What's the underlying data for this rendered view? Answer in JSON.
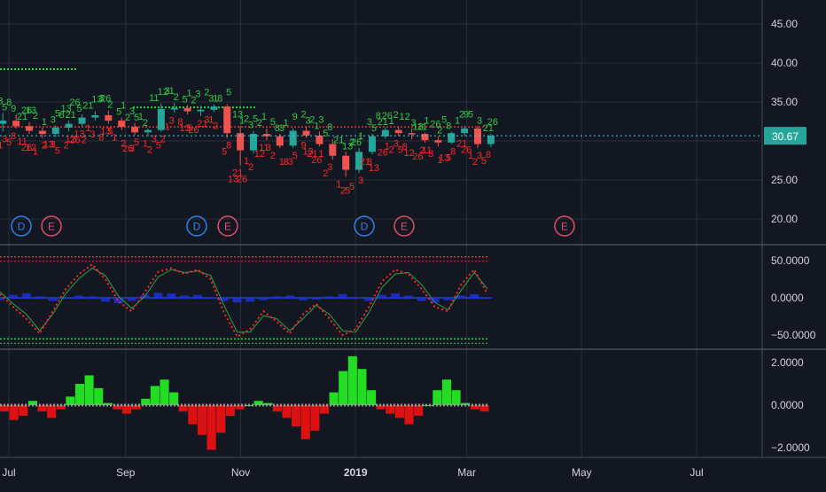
{
  "colors": {
    "background": "#131722",
    "grid": "#2a2e39",
    "axis_text": "#d1d4dc",
    "separator": "#4a4f5c",
    "up": "#26a69a",
    "down": "#ef5350",
    "signal_green": "#2ecc40",
    "signal_red": "#ff2525",
    "price_line": "#4dd0e1",
    "price_badge": "#26a69a",
    "event_dividend": "#2f80ed",
    "event_earnings": "#e04d68",
    "osc_zero": "#2962ff",
    "osc_blue": "#2030d8",
    "hist_green": "#22dd22",
    "hist_red": "#dd1111"
  },
  "x_axis": {
    "labels": [
      {
        "text": "Jul",
        "bold": false
      },
      {
        "text": "Sep",
        "bold": false
      },
      {
        "text": "Nov",
        "bold": false
      },
      {
        "text": "2019",
        "bold": true
      },
      {
        "text": "Mar",
        "bold": false
      },
      {
        "text": "May",
        "bold": false
      },
      {
        "text": "Jul",
        "bold": false
      }
    ]
  },
  "price_panel": {
    "y_ticks": [
      "45.00",
      "40.00",
      "35.00",
      "30.00",
      "25.00",
      "20.00"
    ],
    "last_price": "30.67",
    "resistance_level": 39.2,
    "events": [
      {
        "type": "D",
        "label": "D"
      },
      {
        "type": "E",
        "label": "E"
      },
      {
        "type": "D",
        "label": "D"
      },
      {
        "type": "E",
        "label": "E"
      },
      {
        "type": "D",
        "label": "D"
      },
      {
        "type": "E",
        "label": "E"
      },
      {
        "type": "E",
        "label": "E"
      }
    ]
  },
  "osc_panel": {
    "y_ticks": [
      "50.0000",
      "0.0000",
      "−50.0000"
    ],
    "upper_band": 55,
    "lower_band": -55
  },
  "hist_panel": {
    "y_ticks": [
      "2.0000",
      "0.0000",
      "−2.0000"
    ]
  },
  "green_counts": [
    "2",
    "3",
    "5",
    "8",
    "9",
    "13",
    "21",
    "26",
    "1",
    "2",
    "3",
    "5",
    "8",
    "13",
    "21",
    "26",
    "5",
    "13",
    "21",
    "26",
    "2",
    "3",
    "5",
    "1",
    "2",
    "3",
    "5",
    "1",
    "2",
    "12",
    "11",
    "1",
    "2",
    "3",
    "5",
    "1",
    "2",
    "3",
    "1",
    "2",
    "3",
    "5",
    "8",
    "13",
    "1",
    "2",
    "3",
    "5",
    "2",
    "1",
    "3",
    "5",
    "8",
    "9",
    "1",
    "2",
    "3",
    "2",
    "1",
    "3",
    "5",
    "8",
    "13",
    "21",
    "26",
    "1",
    "2",
    "3",
    "5",
    "8",
    "21",
    "26",
    "1",
    "2",
    "3",
    "12",
    "11",
    "1",
    "13",
    "26",
    "2",
    "5",
    "8",
    "9",
    "1",
    "2",
    "3",
    "5",
    "21",
    "26"
  ],
  "red_counts": [
    "2",
    "1",
    "3",
    "5",
    "8",
    "12",
    "11",
    "26",
    "2",
    "1",
    "3",
    "5",
    "13",
    "2",
    "12",
    "26",
    "13",
    "2",
    "1",
    "3",
    "5",
    "8",
    "13",
    "2",
    "1",
    "3",
    "5",
    "26",
    "1",
    "2",
    "3",
    "5",
    "2",
    "1",
    "3",
    "5",
    "8",
    "13",
    "21",
    "26",
    "1",
    "2",
    "3",
    "5",
    "8",
    "13",
    "21",
    "26",
    "1",
    "2",
    "3",
    "12",
    "11",
    "1",
    "2",
    "3",
    "5",
    "8",
    "9",
    "13",
    "21",
    "26",
    "1",
    "2",
    "3",
    "5",
    "1",
    "2",
    "3",
    "5",
    "8",
    "13",
    "21",
    "26",
    "1",
    "2",
    "3",
    "5",
    "8",
    "12",
    "11",
    "26",
    "2",
    "1",
    "3",
    "5",
    "8",
    "13",
    "21",
    "26",
    "1",
    "2",
    "3",
    "5",
    "8"
  ],
  "chart_data": [
    {
      "type": "candlestick",
      "title": "",
      "x_range": [
        "2018-06-25",
        "2019-07-31"
      ],
      "ylim": [
        16.0,
        47.5
      ],
      "grid": true,
      "series": [
        {
          "ohlc_weekly": [
            [
              "2018-06-25",
              32.2,
              33.6,
              31.2,
              32.6
            ],
            [
              "2018-07-02",
              32.6,
              33.4,
              31.6,
              31.9
            ],
            [
              "2018-07-09",
              31.9,
              32.4,
              30.9,
              31.3
            ],
            [
              "2018-07-16",
              31.3,
              31.7,
              30.4,
              30.9
            ],
            [
              "2018-07-23",
              30.9,
              32.0,
              30.5,
              31.7
            ],
            [
              "2018-07-30",
              31.7,
              32.6,
              31.2,
              32.2
            ],
            [
              "2018-08-06",
              32.2,
              33.4,
              31.9,
              33.0
            ],
            [
              "2018-08-13",
              33.0,
              33.8,
              32.6,
              33.3
            ],
            [
              "2018-08-20",
              33.3,
              33.9,
              32.2,
              32.6
            ],
            [
              "2018-08-27",
              32.6,
              33.0,
              31.4,
              31.8
            ],
            [
              "2018-09-03",
              31.8,
              32.3,
              30.8,
              31.1
            ],
            [
              "2018-09-10",
              31.1,
              31.6,
              30.6,
              31.4
            ],
            [
              "2018-09-17",
              31.4,
              34.8,
              31.2,
              34.1
            ],
            [
              "2018-09-24",
              34.1,
              34.9,
              33.6,
              34.2
            ],
            [
              "2018-10-01",
              34.2,
              34.6,
              33.4,
              33.8
            ],
            [
              "2018-10-08",
              33.8,
              34.5,
              33.2,
              34.0
            ],
            [
              "2018-10-15",
              34.0,
              34.7,
              33.7,
              34.4
            ],
            [
              "2018-10-22",
              34.4,
              34.7,
              30.4,
              31.0
            ],
            [
              "2018-10-29",
              31.0,
              31.9,
              26.9,
              28.8
            ],
            [
              "2018-11-05",
              28.8,
              31.3,
              28.4,
              30.9
            ],
            [
              "2018-11-12",
              30.9,
              31.6,
              30.1,
              30.6
            ],
            [
              "2018-11-19",
              30.6,
              30.9,
              29.1,
              29.4
            ],
            [
              "2018-11-26",
              29.4,
              31.6,
              29.1,
              31.3
            ],
            [
              "2018-12-03",
              31.3,
              31.9,
              30.4,
              30.7
            ],
            [
              "2018-12-10",
              30.7,
              31.2,
              29.3,
              29.6
            ],
            [
              "2018-12-17",
              29.6,
              30.2,
              27.6,
              28.1
            ],
            [
              "2018-12-24",
              28.1,
              28.6,
              25.4,
              26.3
            ],
            [
              "2018-12-31",
              26.3,
              29.1,
              25.9,
              28.6
            ],
            [
              "2019-01-07",
              28.6,
              30.9,
              28.3,
              30.6
            ],
            [
              "2019-01-14",
              30.6,
              31.7,
              30.3,
              31.4
            ],
            [
              "2019-01-21",
              31.4,
              31.8,
              30.6,
              31.0
            ],
            [
              "2019-01-28",
              31.0,
              31.6,
              30.2,
              30.9
            ],
            [
              "2019-02-04",
              30.9,
              31.1,
              29.8,
              30.1
            ],
            [
              "2019-02-11",
              30.1,
              30.6,
              29.3,
              29.8
            ],
            [
              "2019-02-18",
              29.8,
              31.2,
              29.6,
              31.0
            ],
            [
              "2019-02-25",
              31.0,
              31.9,
              30.6,
              31.6
            ],
            [
              "2019-03-04",
              31.6,
              31.9,
              29.1,
              29.6
            ],
            [
              "2019-03-11",
              29.6,
              30.9,
              29.2,
              30.67
            ]
          ]
        }
      ]
    },
    {
      "type": "line",
      "title": "",
      "ylim": [
        -63,
        63
      ],
      "grid": true,
      "series": [
        {
          "values": [
            5,
            -12,
            -28,
            -48,
            -18,
            12,
            32,
            45,
            25,
            -5,
            -18,
            8,
            35,
            40,
            32,
            38,
            25,
            -20,
            -52,
            -42,
            -18,
            -32,
            -48,
            -22,
            -8,
            -28,
            -50,
            -42,
            -12,
            22,
            38,
            32,
            12,
            -12,
            -18,
            18,
            38,
            5
          ]
        },
        {
          "values": [
            8,
            -8,
            -22,
            -44,
            -22,
            6,
            26,
            40,
            30,
            2,
            -14,
            2,
            28,
            38,
            34,
            36,
            30,
            -10,
            -46,
            -46,
            -24,
            -28,
            -44,
            -28,
            -10,
            -22,
            -44,
            -46,
            -20,
            14,
            32,
            34,
            18,
            -6,
            -16,
            10,
            34,
            12
          ]
        },
        {
          "values": [
            -2,
            4,
            6,
            2,
            -3,
            1,
            3,
            2,
            -4,
            -6,
            -3,
            4,
            7,
            6,
            3,
            4,
            1,
            -3,
            -5,
            -4,
            -2,
            2,
            3,
            -2,
            -1,
            2,
            5,
            1,
            -3,
            4,
            6,
            3,
            -3,
            -5,
            -2,
            3,
            5,
            1
          ]
        }
      ]
    },
    {
      "type": "bar",
      "title": "",
      "ylim": [
        -2.4,
        2.4
      ],
      "grid": true,
      "series": [
        {
          "values": [
            -0.3,
            -0.7,
            -0.5,
            0.2,
            -0.3,
            -0.6,
            -0.2,
            0.4,
            1.0,
            1.4,
            0.8,
            0.1,
            -0.2,
            -0.4,
            -0.2,
            0.3,
            0.9,
            1.2,
            0.6,
            -0.3,
            -0.9,
            -1.4,
            -2.1,
            -1.3,
            -0.5,
            -0.2,
            0.0,
            0.2,
            0.1,
            -0.3,
            -0.6,
            -1.0,
            -1.6,
            -1.2,
            -0.4,
            0.6,
            1.6,
            2.3,
            1.7,
            0.7,
            -0.2,
            -0.4,
            -0.6,
            -0.9,
            -0.5,
            0.0,
            0.7,
            1.2,
            0.7,
            0.1,
            -0.2,
            -0.3
          ]
        }
      ]
    }
  ]
}
